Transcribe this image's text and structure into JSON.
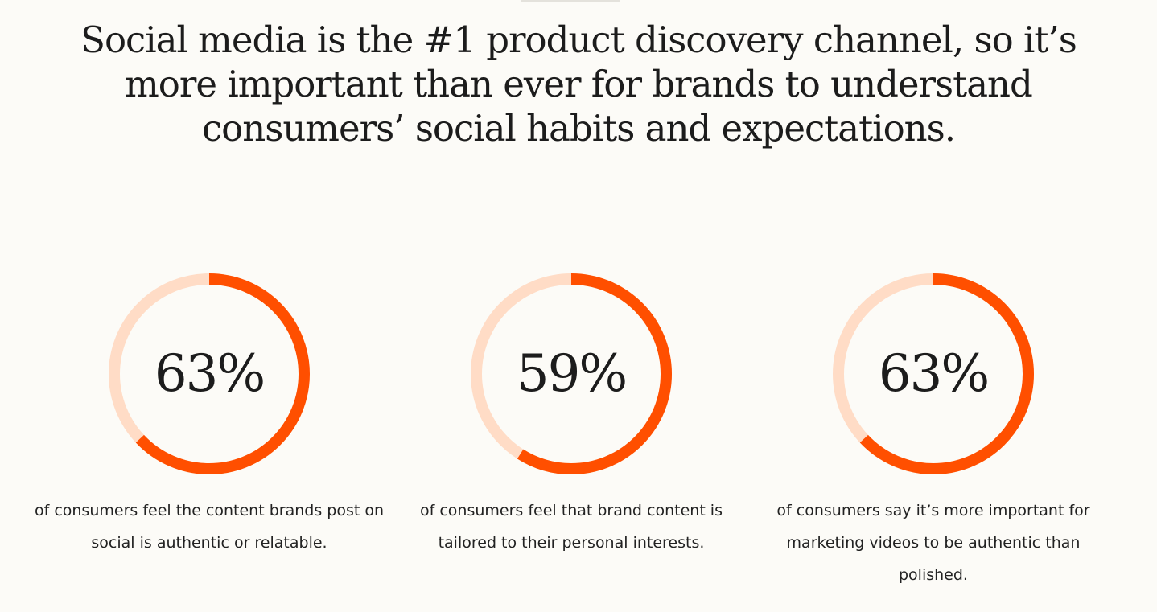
{
  "headline": "Social media is the #1 product discovery channel, so it’s more important than ever for brands to understand consumers’ social habits and expectations.",
  "colors": {
    "background": "#fcfbf7",
    "accent": "#ff4f00",
    "track": "#ffdcc6",
    "text": "#1c1c1c"
  },
  "stats": [
    {
      "value_label": "63%",
      "percent": 63,
      "caption": "of consumers feel the content brands post on social is authentic or relatable."
    },
    {
      "value_label": "59%",
      "percent": 59,
      "caption": "of consumers feel that brand content is tailored to their personal interests."
    },
    {
      "value_label": "63%",
      "percent": 63,
      "caption": "of consumers say it’s more important for marketing videos to be authentic than polished."
    }
  ]
}
